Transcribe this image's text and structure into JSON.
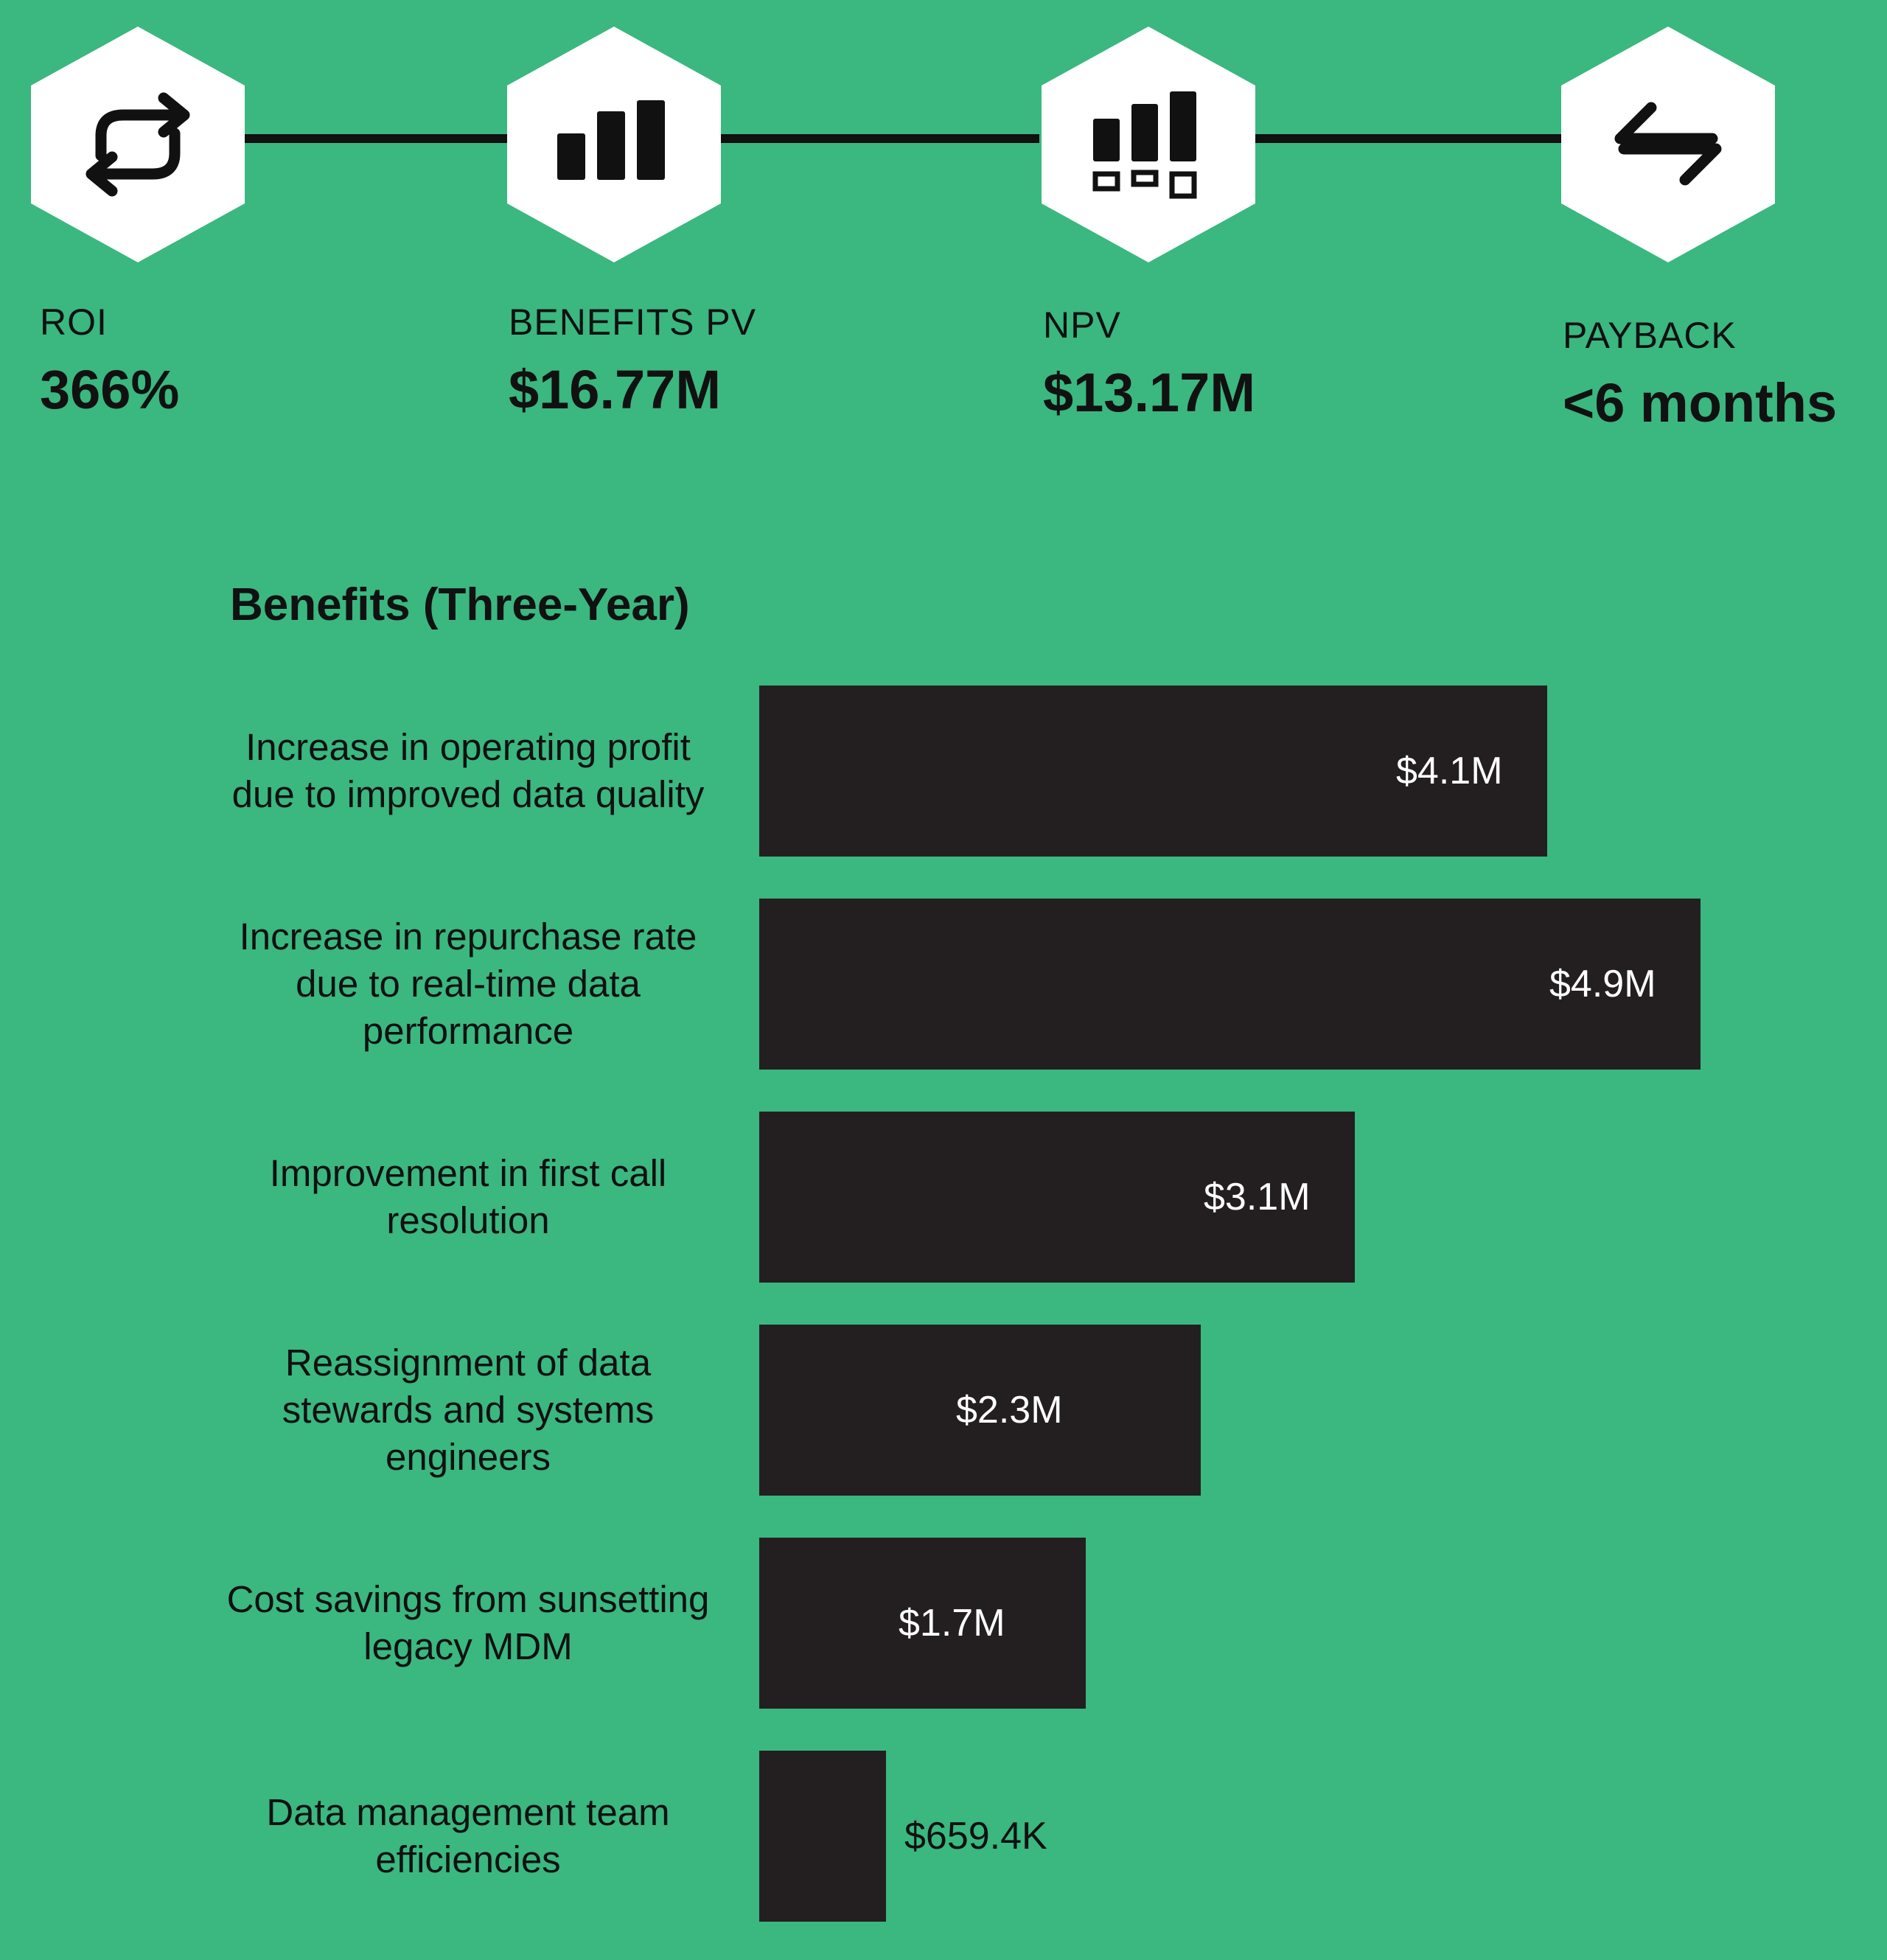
{
  "metrics": [
    {
      "label": "ROI",
      "value": "366%",
      "icon": "refresh-cycle-icon"
    },
    {
      "label": "BENEFITS PV",
      "value": "$16.77M",
      "icon": "bar-chart-icon"
    },
    {
      "label": "NPV",
      "value": "$13.17M",
      "icon": "bar-chart-boxes-icon"
    },
    {
      "label": "PAYBACK",
      "value": "<6 months",
      "icon": "transfer-arrows-icon"
    }
  ],
  "colors": {
    "background": "#3bb780",
    "bar": "#231f20",
    "hex": "#ffffff",
    "text": "#111111",
    "bar_text": "#ffffff"
  },
  "chart_data": {
    "type": "bar",
    "orientation": "horizontal",
    "title": "Benefits (Three-Year)",
    "categories": [
      "Increase in operating profit due to improved data quality",
      "Increase in repurchase rate due to real-time data performance",
      "Improvement in first call resolution",
      "Reassignment of data stewards and systems engineers",
      "Cost savings from sunsetting legacy MDM",
      "Data management team efficiencies"
    ],
    "values": [
      4.1,
      4.9,
      3.1,
      2.3,
      1.7,
      0.6594
    ],
    "value_labels": [
      "$4.1M",
      "$4.9M",
      "$3.1M",
      "$2.3M",
      "$1.7M",
      "$659.4K"
    ],
    "unit": "$M",
    "xlim": [
      0,
      4.9
    ],
    "grid": false,
    "legend": "none"
  }
}
